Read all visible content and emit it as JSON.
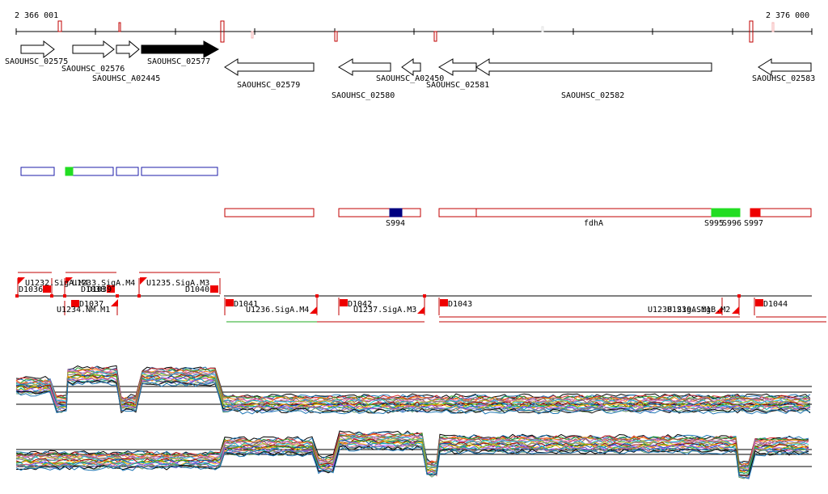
{
  "axis": {
    "start_label": "2 366 001",
    "end_label": "2 376 000"
  },
  "genes": [
    {
      "label": "SAOUHSC_02575"
    },
    {
      "label": "SAOUHSC_02576"
    },
    {
      "label": "SAOUHSC_A02445"
    },
    {
      "label": "SAOUHSC_02577"
    },
    {
      "label": "SAOUHSC_02579"
    },
    {
      "label": "SAOUHSC_02580"
    },
    {
      "label": "SAOUHSC_A02450"
    },
    {
      "label": "SAOUHSC_02581"
    },
    {
      "label": "SAOUHSC_02582"
    },
    {
      "label": "SAOUHSC_02583"
    }
  ],
  "features": [
    {
      "label": "S994"
    },
    {
      "label": "fdhA"
    },
    {
      "label": "S995"
    },
    {
      "label": "S996"
    },
    {
      "label": "S997"
    }
  ],
  "upper_annotations": [
    {
      "label": "U1232.SigA.M4"
    },
    {
      "label": "U1233.SigA.M4"
    },
    {
      "label": "U1235.SigA.M3"
    },
    {
      "label": "D1036"
    },
    {
      "label": "D1038"
    },
    {
      "label": "D1039"
    },
    {
      "label": "D1040"
    },
    {
      "label": "D1037"
    },
    {
      "label": "U1234.NM.M1"
    }
  ],
  "lower_annotations": [
    {
      "label": "D1041"
    },
    {
      "label": "U1236.SigA.M4"
    },
    {
      "label": "D1042"
    },
    {
      "label": "U1237.SigA.M3"
    },
    {
      "label": "D1043"
    },
    {
      "label": "U1238.SigA.M1"
    },
    {
      "label": "U1239.SigB.M2"
    },
    {
      "label": "D1044"
    }
  ]
}
